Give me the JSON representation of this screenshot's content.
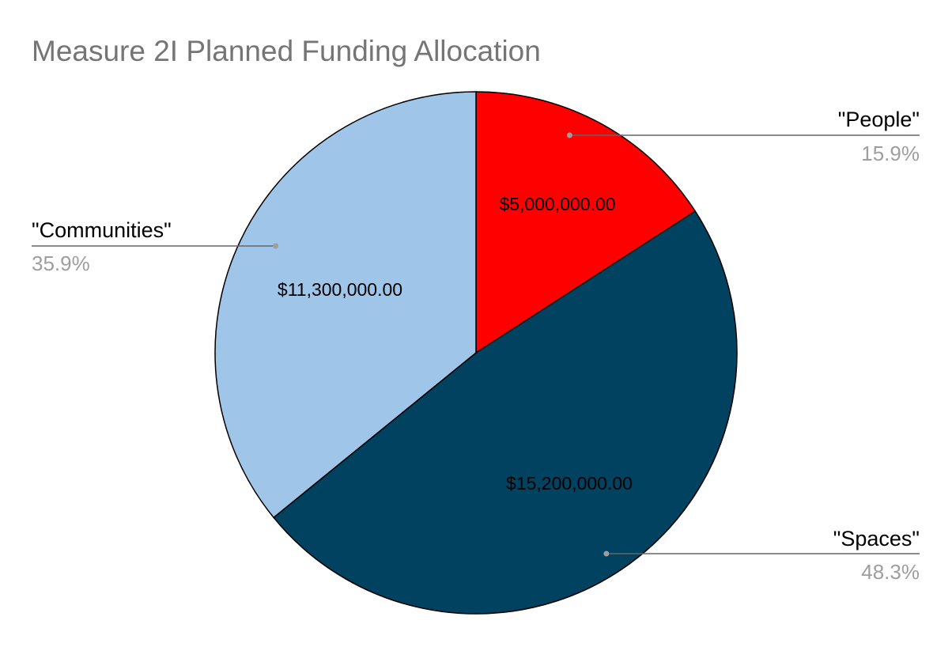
{
  "chart_data": {
    "type": "pie",
    "title": "Measure 2I Planned Funding Allocation",
    "slices": [
      {
        "label": "\"People\"",
        "value": 5000000,
        "value_label": "$5,000,000.00",
        "percent_label": "15.9%",
        "color": "#ff0000"
      },
      {
        "label": "\"Spaces\"",
        "value": 15200000,
        "value_label": "$15,200,000.00",
        "percent_label": "48.3%",
        "color": "#00425f"
      },
      {
        "label": "\"Communities\"",
        "value": 11300000,
        "value_label": "$11,300,000.00",
        "percent_label": "35.9%",
        "color": "#9fc5e8"
      }
    ],
    "start_angle": "12 o'clock",
    "direction": "clockwise",
    "legend": "none",
    "colors": {
      "title": "#757575",
      "callout_label": "#000000",
      "callout_percent": "#9e9e9e",
      "leader_line": "#666666",
      "slice_border": "#000000",
      "value_label": "#000000"
    }
  }
}
